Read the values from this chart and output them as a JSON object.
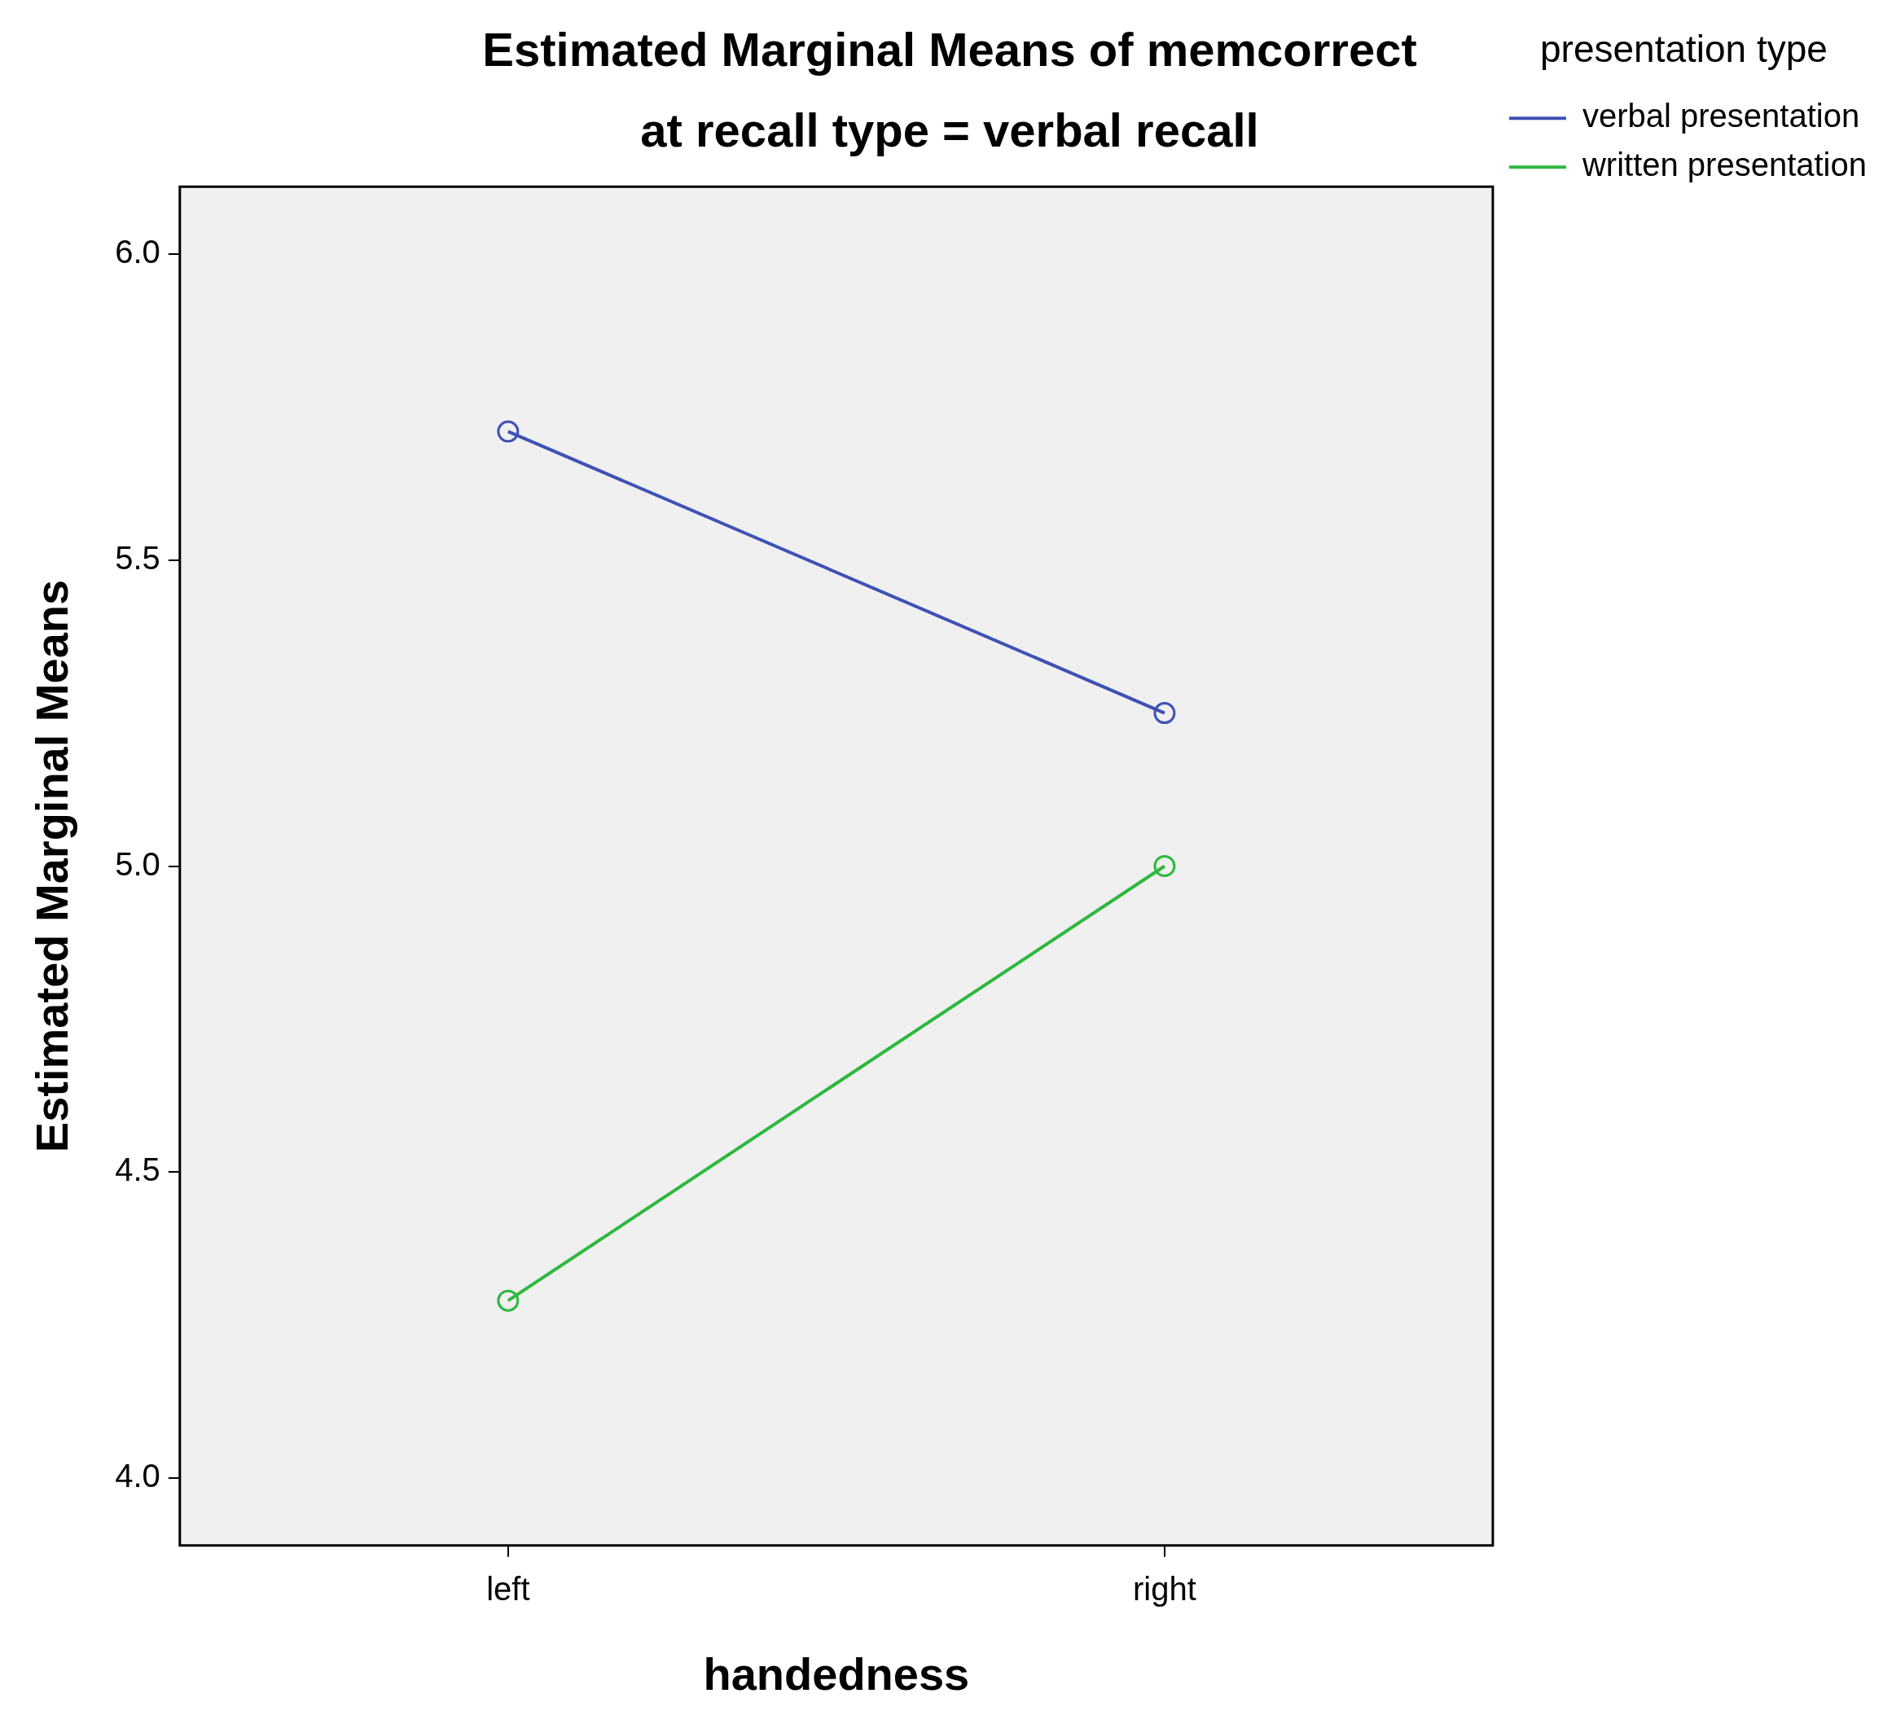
{
  "chart_data": {
    "type": "line",
    "title": "Estimated Marginal Means of memcorrect",
    "subtitle": "at recall type = verbal recall",
    "xlabel": "handedness",
    "ylabel": "Estimated Marginal Means",
    "legend_title": "presentation type",
    "categories": [
      "left",
      "right"
    ],
    "series": [
      {
        "name": "verbal presentation",
        "color": "#3f51b5",
        "values": [
          5.71,
          5.25
        ]
      },
      {
        "name": "written presentation",
        "color": "#2db83d",
        "values": [
          4.29,
          5.0
        ]
      }
    ],
    "ylim": [
      3.89,
      6.11
    ],
    "yticks": [
      {
        "value": 4,
        "label": "4.0"
      },
      {
        "value": 4.5,
        "label": "4.5"
      },
      {
        "value": 5,
        "label": "5.0"
      },
      {
        "value": 5.5,
        "label": "5.5"
      },
      {
        "value": 6,
        "label": "6.0"
      }
    ],
    "grid": false,
    "legend": "top right",
    "marker": "circle",
    "line_style": "solid"
  }
}
